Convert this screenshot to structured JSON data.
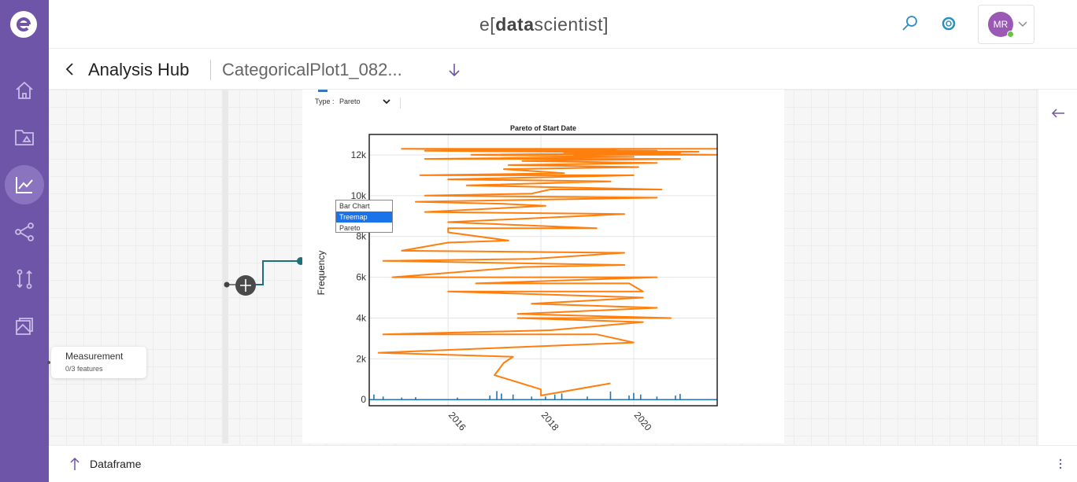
{
  "brand": {
    "prefix": "e",
    "open": "[",
    "bold": "data",
    "rest": "scientist",
    "close": "]"
  },
  "user": {
    "initials": "MR"
  },
  "header": {
    "title": "Analysis Hub",
    "file_name": "CategoricalPlot1_082..."
  },
  "node": {
    "title": "Measurement",
    "subtitle": "0/3 features"
  },
  "chart_panel": {
    "type_label": "Type :",
    "type_value": "Pareto"
  },
  "type_menu": {
    "options": [
      "Bar Chart",
      "Treemap",
      "Pareto"
    ],
    "highlighted": "Treemap"
  },
  "footer": {
    "label": "Dataframe"
  },
  "icons": [
    "app-logo-icon",
    "home-icon",
    "folder-icon",
    "analysis-icon",
    "workflow-icon",
    "compare-icon",
    "layers-icon",
    "search-icon",
    "help-icon",
    "chevron-down-icon",
    "back-icon",
    "download-icon",
    "collapse-icon",
    "upload-icon",
    "more-icon"
  ],
  "colors": {
    "sidebar": "#6e55a8",
    "accent": "#5b4c9e",
    "line": "#ff7f0e",
    "bars": "#1f77b4",
    "menu_highlight": "#1a73e8"
  },
  "chart_data": {
    "type": "line",
    "title": "Pareto of Start Date",
    "ylabel": "Frequency",
    "xlabel": "",
    "xlim": [
      2014.3,
      2021.8
    ],
    "ylim": [
      -300,
      13000
    ],
    "x_ticks": [
      2016,
      2018,
      2020
    ],
    "x_tick_labels": [
      "2016",
      "2018",
      "2020"
    ],
    "y_ticks": [
      0,
      2000,
      4000,
      6000,
      8000,
      10000,
      12000
    ],
    "y_tick_labels": [
      "0",
      "2k",
      "4k",
      "6k",
      "8k",
      "10k",
      "12k"
    ],
    "grid": true,
    "series": [
      {
        "style": "line",
        "x": [
          2019.5,
          2018.0,
          2018.0,
          2017.0,
          2017.2,
          2017.4,
          2014.5,
          2020.0,
          2019.2,
          2014.6,
          2018.2,
          2020.2,
          2017.5,
          2020.8,
          2017.5,
          2020.5,
          2017.8,
          2020.2,
          2016.0,
          2020.2,
          2019.9,
          2016.6,
          2020.5,
          2014.8,
          2017.6,
          2019.8,
          2014.6,
          2017.8,
          2019.8,
          2015.0,
          2016.0,
          2017.3,
          2016.0,
          2016.0,
          2019.2,
          2016.0,
          2019.8,
          2015.5,
          2018.1,
          2017.2,
          2015.3,
          2020.5,
          2015.5,
          2017.8,
          2018.2,
          2020.6,
          2016.4,
          2019.5,
          2016.0,
          2020.0,
          2015.4,
          2018.5,
          2017.2,
          2020.1,
          2017.3,
          2020.5,
          2017.6,
          2021.0,
          2015.5,
          2020.0,
          2016.5,
          2021.0,
          2015.5,
          2019.8,
          2018.7,
          2021.8,
          2015.0,
          2020.5,
          2018.0,
          2021.4,
          2018.5,
          2021.8,
          2018.7
        ],
        "y": [
          800,
          200,
          500,
          1200,
          1800,
          2100,
          2300,
          2800,
          3200,
          3200,
          3400,
          3800,
          4000,
          4000,
          4200,
          4500,
          4700,
          5000,
          5300,
          5300,
          5700,
          5700,
          6000,
          6000,
          6500,
          6600,
          6800,
          6900,
          7200,
          7300,
          7700,
          7800,
          8200,
          8400,
          8400,
          8700,
          9100,
          9200,
          9500,
          9600,
          9700,
          9900,
          10000,
          10100,
          10300,
          10300,
          10500,
          10700,
          10800,
          11000,
          11000,
          11100,
          11300,
          11400,
          11500,
          11600,
          11700,
          11800,
          11800,
          11900,
          12000,
          12100,
          12200,
          12200,
          12300,
          12300,
          12300,
          12200,
          12200,
          12150,
          12100,
          12000,
          12000
        ]
      },
      {
        "style": "bars",
        "x": [
          2014.4,
          2014.6,
          2015.0,
          2015.3,
          2016.2,
          2016.9,
          2017.05,
          2017.15,
          2017.4,
          2017.8,
          2018.1,
          2018.3,
          2018.45,
          2019.0,
          2019.5,
          2019.9,
          2020.0,
          2020.15,
          2020.5,
          2020.9,
          2021.0
        ],
        "y": [
          250,
          150,
          100,
          120,
          100,
          200,
          420,
          300,
          250,
          150,
          150,
          250,
          300,
          150,
          400,
          200,
          330,
          250,
          150,
          200,
          280
        ]
      }
    ]
  }
}
